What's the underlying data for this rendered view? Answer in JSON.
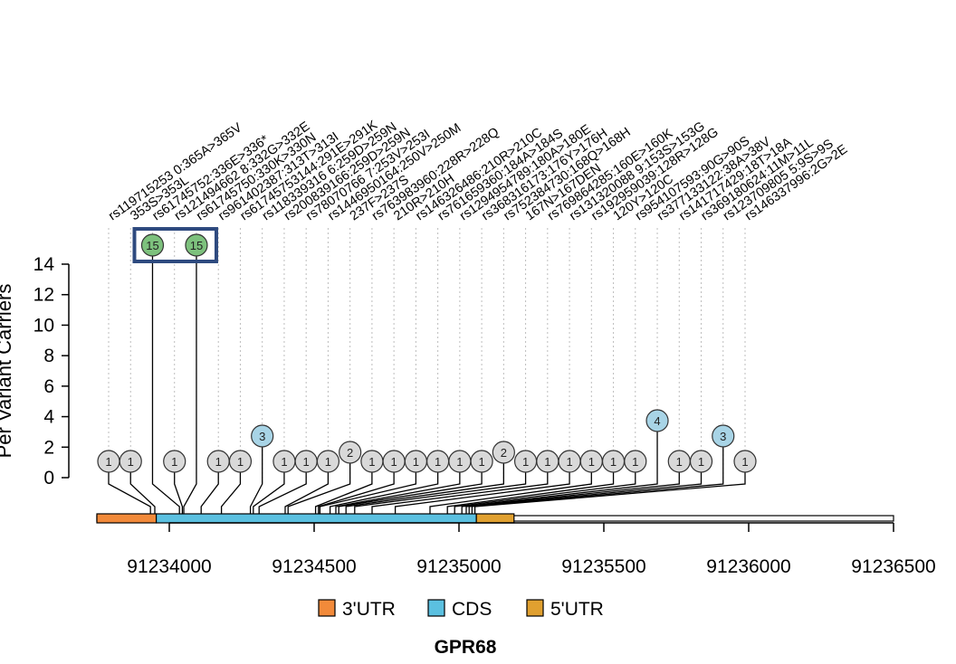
{
  "chart_data": {
    "type": "lollipop",
    "gene": "GPR68",
    "ylabel": "Per Variant Carriers",
    "ylim": [
      0,
      14
    ],
    "yticks": [
      0,
      2,
      4,
      6,
      8,
      10,
      12,
      14
    ],
    "xlim": [
      91233750,
      91236500
    ],
    "xticks": [
      91234000,
      91234500,
      91235000,
      91235500,
      91236000,
      91236500
    ],
    "xtick_labels": [
      "91234000",
      "91234500",
      "91235000",
      "91235500",
      "91236000",
      "91236500"
    ],
    "features": [
      {
        "name": "3'UTR",
        "start": 91233750,
        "end": 91233955,
        "color": "#F28A3A"
      },
      {
        "name": "CDS",
        "start": 91233955,
        "end": 91235060,
        "color": "#5BC0E0"
      },
      {
        "name": "5'UTR",
        "start": 91235060,
        "end": 91235190,
        "color": "#E0A030"
      }
    ],
    "legend": [
      {
        "label": "3'UTR",
        "color": "#F28A3A"
      },
      {
        "label": "CDS",
        "color": "#5BC0E0"
      },
      {
        "label": "5'UTR",
        "color": "#E0A030"
      }
    ],
    "variants": [
      {
        "label": "rs119715253 0:365A>365V",
        "count": 1,
        "pos": 91233935,
        "color": "#D9D9D9"
      },
      {
        "label": "353S>353L",
        "count": 1,
        "pos": 91233950,
        "color": "#D9D9D9"
      },
      {
        "label": "rs61745752:336E>336*",
        "count": 15,
        "pos": 91234035,
        "color": "#7DC17D",
        "highlight": true
      },
      {
        "label": "rs121494662 8:332G>332E",
        "count": 1,
        "pos": 91234045,
        "color": "#D9D9D9"
      },
      {
        "label": "rs61745750:330K>330N",
        "count": 15,
        "pos": 91234050,
        "color": "#7DC17D",
        "highlight": true
      },
      {
        "label": "rs961402387:313T>313I",
        "count": 1,
        "pos": 91234110,
        "color": "#D9D9D9"
      },
      {
        "label": "rs61745753144:291E>291K",
        "count": 1,
        "pos": 91234180,
        "color": "#D9D9D9"
      },
      {
        "label": "rs118339316 6:259D>259N",
        "count": 3,
        "pos": 91234280,
        "color": "#A8D4E6"
      },
      {
        "label": "rs200839166:259D>259N",
        "count": 1,
        "pos": 91234290,
        "color": "#D9D9D9"
      },
      {
        "label": "rs78070766 7:253V>253I",
        "count": 1,
        "pos": 91234310,
        "color": "#D9D9D9"
      },
      {
        "label": "rs1446950164:250V>250M",
        "count": 1,
        "pos": 91234400,
        "color": "#D9D9D9"
      },
      {
        "label": "237F>237S",
        "count": 2,
        "pos": 91234410,
        "color": "#D9D9D9"
      },
      {
        "label": "rs763983960:228R>228Q",
        "count": 1,
        "pos": 91234505,
        "color": "#D9D9D9"
      },
      {
        "label": "210R>210H",
        "count": 1,
        "pos": 91234515,
        "color": "#D9D9D9"
      },
      {
        "label": "rs146326486:210R>210C",
        "count": 1,
        "pos": 91234520,
        "color": "#D9D9D9"
      },
      {
        "label": "rs761659360:184A>184S",
        "count": 1,
        "pos": 91234555,
        "color": "#D9D9D9"
      },
      {
        "label": "rs1294954789:180A>180E",
        "count": 1,
        "pos": 91234575,
        "color": "#D9D9D9"
      },
      {
        "label": "rs368316173:176Y>176H",
        "count": 1,
        "pos": 91234585,
        "color": "#D9D9D9"
      },
      {
        "label": "rs752384730:168Q>168H",
        "count": 2,
        "pos": 91234610,
        "color": "#D9D9D9"
      },
      {
        "label": "167N>167DEN",
        "count": 1,
        "pos": 91234640,
        "color": "#D9D9D9"
      },
      {
        "label": "rs769864285:160E>160K",
        "count": 1,
        "pos": 91234700,
        "color": "#D9D9D9"
      },
      {
        "label": "rs131320088 9:153S>153G",
        "count": 1,
        "pos": 91234780,
        "color": "#D9D9D9"
      },
      {
        "label": "rs192959039:128R>128G",
        "count": 1,
        "pos": 91234900,
        "color": "#D9D9D9"
      },
      {
        "label": "120Y>120C",
        "count": 1,
        "pos": 91234960,
        "color": "#D9D9D9"
      },
      {
        "label": "rs954107593:90G>90S",
        "count": 1,
        "pos": 91234985,
        "color": "#D9D9D9"
      },
      {
        "label": "rs377133122:38A>38V",
        "count": 4,
        "pos": 91235010,
        "color": "#A8D4E6"
      },
      {
        "label": "rs141717429:18T>18A",
        "count": 1,
        "pos": 91235025,
        "color": "#D9D9D9"
      },
      {
        "label": "rs369180624:11M>11L",
        "count": 1,
        "pos": 91235035,
        "color": "#D9D9D9"
      },
      {
        "label": "rs123709805 5:9S>9S",
        "count": 3,
        "pos": 91235045,
        "color": "#A8D4E6"
      },
      {
        "label": "rs146337996:2G>2E",
        "count": 1,
        "pos": 91235055,
        "color": "#D9D9D9"
      }
    ]
  }
}
